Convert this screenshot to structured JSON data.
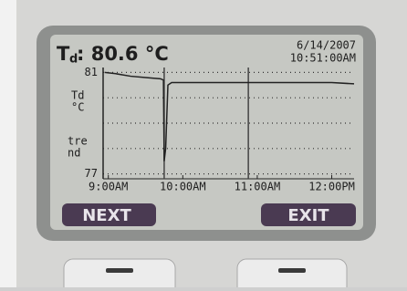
{
  "header": {
    "symbol": "T",
    "subscript": "d",
    "reading": ": 80.6 °C",
    "date": "6/14/2007",
    "time": "10:51:00AM"
  },
  "chart_data": {
    "type": "line",
    "ylabel": [
      "Td",
      "°C"
    ],
    "note": [
      "tre",
      "nd"
    ],
    "x": [
      8.95,
      9.1,
      9.3,
      9.5,
      9.7,
      9.74,
      9.75,
      9.77,
      9.8,
      9.85,
      10.0,
      10.5,
      11.0,
      11.5,
      12.0,
      12.3
    ],
    "values": [
      81,
      80.95,
      80.85,
      80.8,
      80.75,
      80.7,
      77.5,
      78.0,
      80.5,
      80.6,
      80.6,
      80.6,
      80.6,
      80.6,
      80.6,
      80.55
    ],
    "color": "#222222",
    "xlim": [
      8.93,
      12.3
    ],
    "ylim": [
      76.95,
      81.05
    ],
    "xticks": [
      {
        "value": 9,
        "label": "9:00AM"
      },
      {
        "value": 10,
        "label": "10:00AM"
      },
      {
        "value": 11,
        "label": "11:00AM"
      },
      {
        "value": 12,
        "label": "12:00PM"
      }
    ],
    "yticks": [
      81,
      77
    ],
    "ygrid": [
      81,
      80,
      79,
      78,
      77
    ],
    "markers": [
      9.75,
      10.88
    ]
  },
  "buttons": [
    "NEXT",
    "EXIT"
  ]
}
